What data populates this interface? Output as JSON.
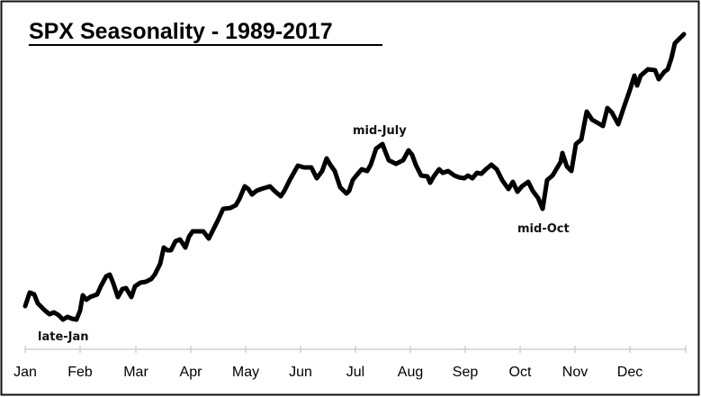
{
  "chart_data": {
    "type": "line",
    "title": "SPX Seasonality - 1989-2017",
    "xlabel": "",
    "ylabel": "",
    "x_unit": "day of year",
    "y_unit": "relative index (no y-axis shown)",
    "xlim": [
      0,
      367
    ],
    "ylim": [
      0,
      340
    ],
    "grid": false,
    "legend": "none",
    "tick_labels": [
      "Jan",
      "Feb",
      "Mar",
      "Apr",
      "May",
      "Jun",
      "Jul",
      "Aug",
      "Sep",
      "Oct",
      "Nov",
      "Dec"
    ],
    "tick_days": [
      0,
      30.5,
      61.5,
      92,
      122.5,
      153,
      183.5,
      214,
      244.5,
      275,
      305.5,
      336
    ],
    "annotations": [
      {
        "text": "late-Jan"
      },
      {
        "text": "mid-July"
      },
      {
        "text": "mid-Oct"
      }
    ],
    "series": [
      {
        "name": "SPX seasonal average",
        "color": "#000000",
        "points": [
          [
            0,
            20
          ],
          [
            2.5,
            35
          ],
          [
            5,
            33
          ],
          [
            7,
            23
          ],
          [
            11,
            15
          ],
          [
            13.5,
            11
          ],
          [
            16,
            13
          ],
          [
            18.5,
            10
          ],
          [
            21,
            5
          ],
          [
            23.5,
            8
          ],
          [
            26,
            6
          ],
          [
            28.5,
            5
          ],
          [
            30.5,
            15
          ],
          [
            32,
            32
          ],
          [
            34,
            27
          ],
          [
            36,
            30
          ],
          [
            40,
            33
          ],
          [
            42,
            42
          ],
          [
            45,
            53
          ],
          [
            47,
            55
          ],
          [
            49,
            45
          ],
          [
            51.5,
            30
          ],
          [
            54,
            39
          ],
          [
            56,
            40
          ],
          [
            59,
            30
          ],
          [
            61,
            42
          ],
          [
            64,
            46
          ],
          [
            67,
            47
          ],
          [
            70,
            50
          ],
          [
            72,
            55
          ],
          [
            75,
            67
          ],
          [
            77,
            85
          ],
          [
            79,
            82
          ],
          [
            81,
            82
          ],
          [
            83.5,
            92
          ],
          [
            86,
            94
          ],
          [
            89,
            85
          ],
          [
            91,
            97
          ],
          [
            93,
            103
          ],
          [
            96,
            103
          ],
          [
            99,
            103
          ],
          [
            102,
            95
          ],
          [
            105,
            107
          ],
          [
            107,
            115
          ],
          [
            110,
            128
          ],
          [
            114,
            129
          ],
          [
            117,
            132
          ],
          [
            119,
            139
          ],
          [
            122,
            153
          ],
          [
            124,
            150
          ],
          [
            126,
            144
          ],
          [
            128.5,
            148
          ],
          [
            131,
            150
          ],
          [
            136,
            153
          ],
          [
            138.5,
            148
          ],
          [
            142,
            142
          ],
          [
            144,
            148
          ],
          [
            147,
            160
          ],
          [
            151.5,
            176
          ],
          [
            155,
            174
          ],
          [
            159,
            174
          ],
          [
            162,
            162
          ],
          [
            165,
            170
          ],
          [
            167.5,
            184
          ],
          [
            169.5,
            177
          ],
          [
            172,
            170
          ],
          [
            175,
            152
          ],
          [
            178.5,
            145
          ],
          [
            180,
            148
          ],
          [
            182,
            160
          ],
          [
            184,
            165
          ],
          [
            187,
            172
          ],
          [
            190,
            170
          ],
          [
            192,
            177
          ],
          [
            195,
            195
          ],
          [
            198.5,
            200
          ],
          [
            200,
            192
          ],
          [
            202,
            182
          ],
          [
            206,
            178
          ],
          [
            210,
            182
          ],
          [
            213,
            193
          ],
          [
            215,
            188
          ],
          [
            217,
            177
          ],
          [
            220,
            165
          ],
          [
            223.5,
            164
          ],
          [
            225,
            157
          ],
          [
            227,
            164
          ],
          [
            230,
            172
          ],
          [
            232,
            168
          ],
          [
            235,
            170
          ],
          [
            238.5,
            165
          ],
          [
            241,
            163
          ],
          [
            244,
            162
          ],
          [
            246,
            165
          ],
          [
            248.5,
            162
          ],
          [
            251,
            168
          ],
          [
            253.5,
            167
          ],
          [
            256,
            172
          ],
          [
            259,
            177
          ],
          [
            262,
            172
          ],
          [
            265,
            160
          ],
          [
            268.5,
            150
          ],
          [
            271,
            158
          ],
          [
            273.5,
            147
          ],
          [
            276,
            153
          ],
          [
            279.5,
            158
          ],
          [
            282,
            148
          ],
          [
            285,
            140
          ],
          [
            287.5,
            128
          ],
          [
            290,
            160
          ],
          [
            293,
            165
          ],
          [
            297.5,
            180
          ],
          [
            298.5,
            190
          ],
          [
            301,
            175
          ],
          [
            303.5,
            170
          ],
          [
            306,
            200
          ],
          [
            309,
            205
          ],
          [
            312,
            236
          ],
          [
            315,
            227
          ],
          [
            318.5,
            223
          ],
          [
            321,
            220
          ],
          [
            323.5,
            240
          ],
          [
            326,
            235
          ],
          [
            329.5,
            222
          ],
          [
            332.5,
            240
          ],
          [
            336,
            260
          ],
          [
            338.5,
            276
          ],
          [
            340,
            265
          ],
          [
            342,
            276
          ],
          [
            346,
            283
          ],
          [
            350,
            282
          ],
          [
            352,
            272
          ],
          [
            355,
            280
          ],
          [
            357,
            283
          ],
          [
            359,
            295
          ],
          [
            361,
            312
          ],
          [
            364,
            318
          ],
          [
            366,
            322
          ]
        ]
      }
    ]
  }
}
